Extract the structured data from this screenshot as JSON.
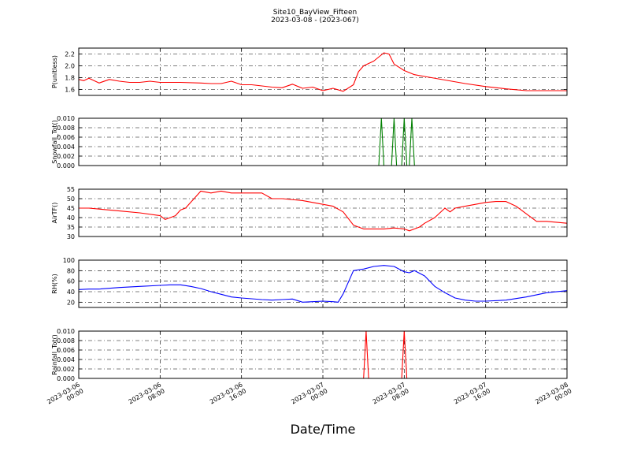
{
  "figure": {
    "title": "Site10_BayView_Fifteen",
    "subtitle": "2023-03-08 - (2023-067)",
    "xlabel": "Date/Time",
    "x_tick_labels": [
      [
        "2023-03-06",
        "00:00"
      ],
      [
        "2023-03-06",
        "08:00"
      ],
      [
        "2023-03-06",
        "16:00"
      ],
      [
        "2023-03-07",
        "00:00"
      ],
      [
        "2023-03-07",
        "08:00"
      ],
      [
        "2023-03-07",
        "16:00"
      ],
      [
        "2023-03-08",
        "00:00"
      ]
    ]
  },
  "chart_data": [
    {
      "type": "line",
      "ylabel": "P(unitless)",
      "color": "#ff0000",
      "ylim": [
        1.5,
        2.3
      ],
      "yticks": [
        "1.6",
        "1.8",
        "2.0",
        "2.2"
      ],
      "xlim": [
        "2023-03-06 00:00",
        "2023-03-08 00:00"
      ],
      "grid": true,
      "series": [
        {
          "x": [
            "2023-03-06 00:00",
            "2023-03-06 00:30",
            "2023-03-06 01:00",
            "2023-03-06 02:00",
            "2023-03-06 03:00",
            "2023-03-06 04:00",
            "2023-03-06 05:00",
            "2023-03-06 06:00",
            "2023-03-06 07:00",
            "2023-03-06 08:00",
            "2023-03-06 10:00",
            "2023-03-06 12:00",
            "2023-03-06 13:00",
            "2023-03-06 14:00",
            "2023-03-06 15:00",
            "2023-03-06 16:00",
            "2023-03-06 17:00",
            "2023-03-06 18:00",
            "2023-03-06 19:00",
            "2023-03-06 20:00",
            "2023-03-06 21:00",
            "2023-03-06 22:00",
            "2023-03-06 23:00",
            "2023-03-07 00:00",
            "2023-03-07 01:00",
            "2023-03-07 02:00",
            "2023-03-07 03:00",
            "2023-03-07 03:30",
            "2023-03-07 04:00",
            "2023-03-07 05:00",
            "2023-03-07 06:00",
            "2023-03-07 06:30",
            "2023-03-07 07:00",
            "2023-03-07 08:00",
            "2023-03-07 09:00",
            "2023-03-07 10:00",
            "2023-03-07 12:00",
            "2023-03-07 14:00",
            "2023-03-07 16:00",
            "2023-03-07 18:00",
            "2023-03-07 20:00",
            "2023-03-07 22:00",
            "2023-03-08 00:00"
          ],
          "y": [
            1.77,
            1.75,
            1.79,
            1.71,
            1.77,
            1.74,
            1.72,
            1.72,
            1.74,
            1.72,
            1.72,
            1.71,
            1.7,
            1.7,
            1.74,
            1.68,
            1.68,
            1.66,
            1.64,
            1.63,
            1.69,
            1.62,
            1.64,
            1.58,
            1.62,
            1.57,
            1.68,
            1.9,
            2.0,
            2.08,
            2.22,
            2.2,
            2.03,
            1.92,
            1.85,
            1.82,
            1.76,
            1.7,
            1.65,
            1.61,
            1.58,
            1.58,
            1.58
          ]
        }
      ]
    },
    {
      "type": "line",
      "ylabel": "Snowfall_Tot()",
      "color": "#008000",
      "ylim": [
        0.0,
        0.01
      ],
      "yticks": [
        "0.000",
        "0.002",
        "0.004",
        "0.006",
        "0.008",
        "0.010"
      ],
      "xlim": [
        "2023-03-06 00:00",
        "2023-03-08 00:00"
      ],
      "grid": true,
      "series": [
        {
          "x": [
            "2023-03-06 00:00",
            "2023-03-07 05:30",
            "2023-03-07 05:45",
            "2023-03-07 06:00",
            "2023-03-07 06:15",
            "2023-03-07 06:45",
            "2023-03-07 07:00",
            "2023-03-07 07:15",
            "2023-03-07 07:45",
            "2023-03-07 08:00",
            "2023-03-07 08:15",
            "2023-03-07 08:30",
            "2023-03-07 08:45",
            "2023-03-07 09:00",
            "2023-03-08 00:00"
          ],
          "y": [
            0,
            0,
            0.01,
            0,
            0,
            0,
            0.01,
            0,
            0,
            0.01,
            0,
            0,
            0.01,
            0,
            0
          ]
        }
      ]
    },
    {
      "type": "line",
      "ylabel": "AirTF()",
      "color": "#ff0000",
      "ylim": [
        30,
        55
      ],
      "yticks": [
        "30",
        "35",
        "40",
        "45",
        "50",
        "55"
      ],
      "xlim": [
        "2023-03-06 00:00",
        "2023-03-08 00:00"
      ],
      "grid": true,
      "series": [
        {
          "x": [
            "2023-03-06 00:00",
            "2023-03-06 01:00",
            "2023-03-06 02:00",
            "2023-03-06 04:00",
            "2023-03-06 06:00",
            "2023-03-06 08:00",
            "2023-03-06 08:30",
            "2023-03-06 09:00",
            "2023-03-06 09:30",
            "2023-03-06 10:00",
            "2023-03-06 10:30",
            "2023-03-06 11:00",
            "2023-03-06 12:00",
            "2023-03-06 13:00",
            "2023-03-06 14:00",
            "2023-03-06 15:00",
            "2023-03-06 16:00",
            "2023-03-06 17:00",
            "2023-03-06 18:00",
            "2023-03-06 19:00",
            "2023-03-06 20:00",
            "2023-03-06 22:00",
            "2023-03-07 00:00",
            "2023-03-07 01:00",
            "2023-03-07 02:00",
            "2023-03-07 03:00",
            "2023-03-07 03:30",
            "2023-03-07 04:00",
            "2023-03-07 05:00",
            "2023-03-07 06:00",
            "2023-03-07 07:00",
            "2023-03-07 08:00",
            "2023-03-07 08:30",
            "2023-03-07 09:00",
            "2023-03-07 09:30",
            "2023-03-07 10:00",
            "2023-03-07 11:00",
            "2023-03-07 12:00",
            "2023-03-07 12:30",
            "2023-03-07 13:00",
            "2023-03-07 14:00",
            "2023-03-07 15:00",
            "2023-03-07 16:00",
            "2023-03-07 17:00",
            "2023-03-07 18:00",
            "2023-03-07 19:00",
            "2023-03-07 20:00",
            "2023-03-07 21:00",
            "2023-03-07 22:00",
            "2023-03-08 00:00"
          ],
          "y": [
            45,
            45,
            44.5,
            43.5,
            42.5,
            41,
            39,
            40,
            41,
            44,
            45,
            48,
            54,
            53,
            54,
            53,
            53,
            53,
            53,
            50,
            50,
            49,
            47,
            46,
            43,
            36,
            35,
            34,
            34,
            34,
            34.5,
            34,
            33,
            34,
            35,
            37,
            40,
            45,
            43,
            45,
            46,
            47,
            48,
            48.5,
            48.5,
            46,
            42,
            38,
            38,
            37
          ]
        }
      ]
    },
    {
      "type": "line",
      "ylabel": "RH(%)",
      "color": "#0000ff",
      "ylim": [
        10,
        100
      ],
      "yticks": [
        "20",
        "40",
        "60",
        "80",
        "100"
      ],
      "xlim": [
        "2023-03-06 00:00",
        "2023-03-08 00:00"
      ],
      "grid": true,
      "series": [
        {
          "x": [
            "2023-03-06 00:00",
            "2023-03-06 01:00",
            "2023-03-06 02:00",
            "2023-03-06 04:00",
            "2023-03-06 06:00",
            "2023-03-06 08:00",
            "2023-03-06 09:00",
            "2023-03-06 10:00",
            "2023-03-06 11:00",
            "2023-03-06 12:00",
            "2023-03-06 13:00",
            "2023-03-06 14:00",
            "2023-03-06 15:00",
            "2023-03-06 16:00",
            "2023-03-06 18:00",
            "2023-03-06 19:00",
            "2023-03-06 20:00",
            "2023-03-06 21:00",
            "2023-03-06 22:00",
            "2023-03-06 23:00",
            "2023-03-07 00:00",
            "2023-03-07 01:00",
            "2023-03-07 01:30",
            "2023-03-07 02:00",
            "2023-03-07 03:00",
            "2023-03-07 04:00",
            "2023-03-07 05:00",
            "2023-03-07 06:00",
            "2023-03-07 07:00",
            "2023-03-07 08:00",
            "2023-03-07 08:30",
            "2023-03-07 09:00",
            "2023-03-07 10:00",
            "2023-03-07 11:00",
            "2023-03-07 12:00",
            "2023-03-07 13:00",
            "2023-03-07 14:00",
            "2023-03-07 15:00",
            "2023-03-07 16:00",
            "2023-03-07 18:00",
            "2023-03-07 20:00",
            "2023-03-07 22:00",
            "2023-03-08 00:00"
          ],
          "y": [
            44,
            45,
            45,
            48,
            50,
            52,
            53,
            53,
            50,
            46,
            40,
            35,
            30,
            28,
            25,
            24,
            25,
            26,
            20,
            21,
            22,
            21,
            20,
            36,
            80,
            83,
            88,
            90,
            88,
            78,
            76,
            80,
            70,
            50,
            38,
            28,
            24,
            22,
            22,
            24,
            30,
            38,
            42
          ]
        }
      ]
    },
    {
      "type": "line",
      "ylabel": "Rainfall_Tot()",
      "color": "#ff0000",
      "ylim": [
        0.0,
        0.01
      ],
      "yticks": [
        "0.000",
        "0.002",
        "0.004",
        "0.006",
        "0.008",
        "0.010"
      ],
      "xlim": [
        "2023-03-06 00:00",
        "2023-03-08 00:00"
      ],
      "grid": true,
      "series": [
        {
          "x": [
            "2023-03-06 00:00",
            "2023-03-07 04:00",
            "2023-03-07 04:15",
            "2023-03-07 04:30",
            "2023-03-07 07:45",
            "2023-03-07 08:00",
            "2023-03-07 08:15",
            "2023-03-08 00:00"
          ],
          "y": [
            0,
            0,
            0.01,
            0,
            0,
            0.01,
            0,
            0
          ]
        }
      ]
    }
  ]
}
